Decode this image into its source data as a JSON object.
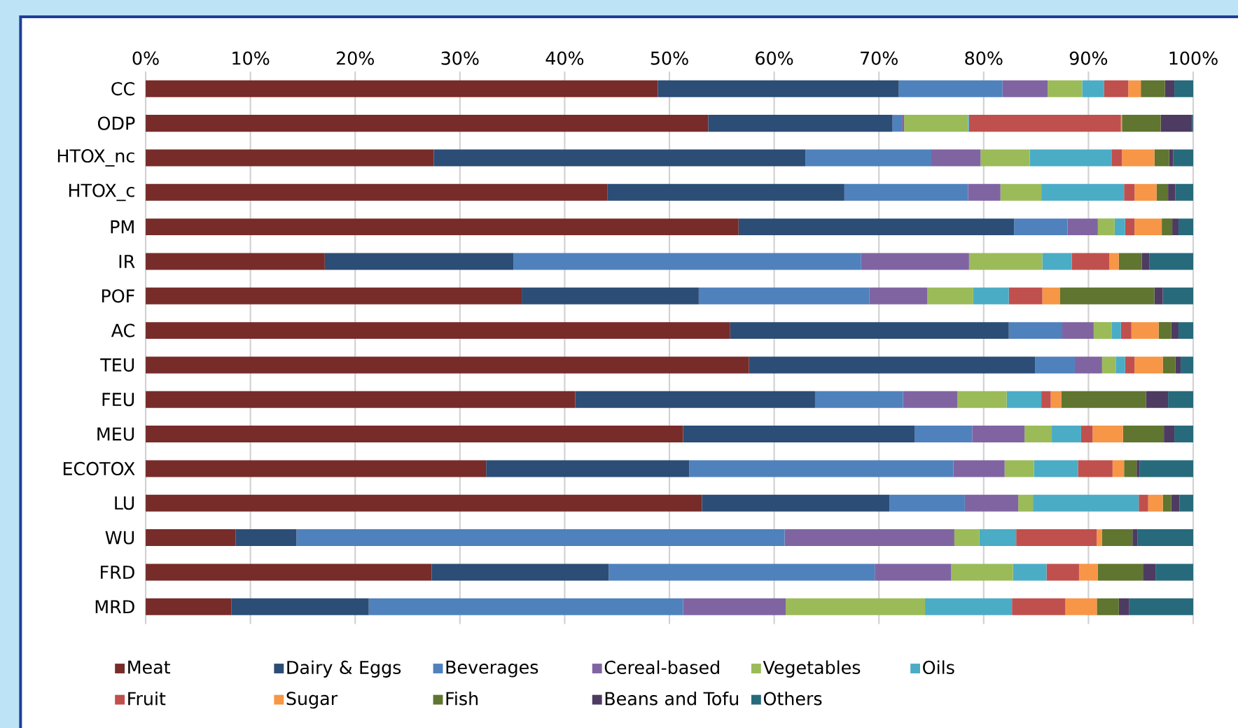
{
  "chart_data": {
    "type": "bar",
    "orientation": "horizontal",
    "stacked": true,
    "grid": "x",
    "legend": "bottom",
    "categories": [
      "CC",
      "ODP",
      "HTOX_nc",
      "HTOX_c",
      "PM",
      "IR",
      "POF",
      "AC",
      "TEU",
      "FEU",
      "MEU",
      "ECOTOX",
      "LU",
      "WU",
      "FRD",
      "MRD"
    ],
    "xlim": [
      0,
      100
    ],
    "xticks": [
      {
        "value": 0,
        "label": "0%"
      },
      {
        "value": 10,
        "label": "10%"
      },
      {
        "value": 20,
        "label": "20%"
      },
      {
        "value": 30,
        "label": "30%"
      },
      {
        "value": 40,
        "label": "40%"
      },
      {
        "value": 50,
        "label": "50%"
      },
      {
        "value": 60,
        "label": "60%"
      },
      {
        "value": 70,
        "label": "70%"
      },
      {
        "value": 80,
        "label": "80%"
      },
      {
        "value": 90,
        "label": "90%"
      },
      {
        "value": 100,
        "label": "100%"
      }
    ],
    "series": [
      {
        "name": "Meat",
        "color": "#772c2a",
        "values": [
          48.9,
          53.7,
          27.5,
          44.1,
          56.6,
          17.1,
          35.9,
          55.8,
          57.6,
          41.0,
          51.3,
          32.5,
          53.1,
          8.6,
          27.3,
          8.2
        ]
      },
      {
        "name": "Dairy & Eggs",
        "color": "#2c4d75",
        "values": [
          23.0,
          17.6,
          35.5,
          22.6,
          26.3,
          18.0,
          16.9,
          26.6,
          27.3,
          22.9,
          22.1,
          19.4,
          17.9,
          5.8,
          16.9,
          13.1
        ]
      },
      {
        "name": "Beverages",
        "color": "#4f81bd",
        "values": [
          9.9,
          0.9,
          12.0,
          11.8,
          5.1,
          33.2,
          16.3,
          5.1,
          3.8,
          8.4,
          5.5,
          25.2,
          7.2,
          46.6,
          25.4,
          30.0
        ]
      },
      {
        "name": "Cereal-based",
        "color": "#8064a2",
        "values": [
          4.3,
          0.2,
          4.7,
          3.1,
          2.9,
          10.3,
          5.5,
          3.0,
          2.6,
          5.2,
          5.0,
          4.9,
          5.1,
          16.2,
          7.3,
          9.8
        ]
      },
      {
        "name": "Vegetables",
        "color": "#9bbb59",
        "values": [
          3.3,
          6.1,
          4.7,
          3.9,
          1.6,
          7.0,
          4.4,
          1.7,
          1.3,
          4.7,
          2.6,
          2.8,
          1.4,
          2.4,
          5.9,
          13.3
        ]
      },
      {
        "name": "Oils",
        "color": "#4bacc6",
        "values": [
          2.1,
          0.1,
          7.8,
          7.9,
          1.0,
          2.8,
          3.4,
          0.9,
          0.9,
          3.3,
          2.8,
          4.2,
          10.1,
          3.5,
          3.2,
          8.3
        ]
      },
      {
        "name": "Fruit",
        "color": "#c0504d",
        "values": [
          2.3,
          14.5,
          1.0,
          1.0,
          0.9,
          3.6,
          3.2,
          1.0,
          0.9,
          0.9,
          1.1,
          3.3,
          0.9,
          7.7,
          3.1,
          5.1
        ]
      },
      {
        "name": "Sugar",
        "color": "#f79646",
        "values": [
          1.2,
          0.1,
          3.1,
          2.1,
          2.6,
          0.9,
          1.7,
          2.6,
          2.7,
          1.0,
          2.9,
          1.1,
          1.4,
          0.5,
          1.8,
          3.0
        ]
      },
      {
        "name": "Fish",
        "color": "#5f7530",
        "values": [
          2.3,
          3.7,
          1.4,
          1.1,
          1.0,
          2.2,
          9.0,
          1.2,
          1.2,
          8.1,
          3.9,
          1.2,
          0.8,
          2.9,
          4.3,
          2.1
        ]
      },
      {
        "name": "Beans and Tofu",
        "color": "#4d3b62",
        "values": [
          0.9,
          3.0,
          0.4,
          0.7,
          0.6,
          0.7,
          0.8,
          0.7,
          0.5,
          2.1,
          1.0,
          0.3,
          0.8,
          0.5,
          1.2,
          1.0
        ]
      },
      {
        "name": "Others",
        "color": "#276a7c",
        "values": [
          1.8,
          0.1,
          1.9,
          1.7,
          1.4,
          4.2,
          2.9,
          1.4,
          1.2,
          2.4,
          1.8,
          5.1,
          1.3,
          5.3,
          3.6,
          6.1
        ]
      }
    ]
  }
}
